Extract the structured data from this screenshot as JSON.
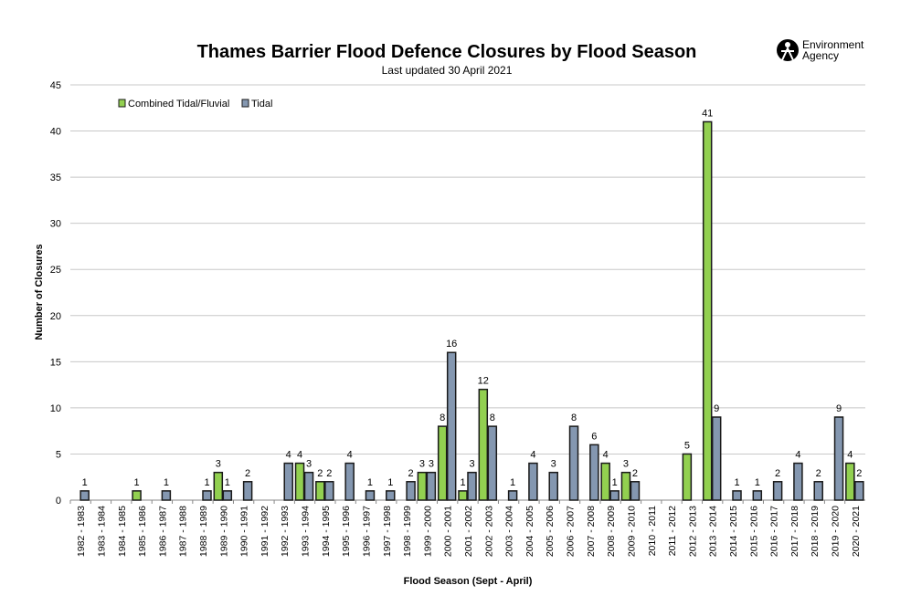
{
  "logo": {
    "line1": "Environment",
    "line2": "Agency"
  },
  "chart_data": {
    "type": "bar",
    "title": "Thames Barrier Flood Defence Closures by Flood Season",
    "subtitle": "Last updated  30 April 2021",
    "xlabel": "Flood Season (Sept - April)",
    "ylabel": "Number of Closures",
    "ylim": [
      0,
      45
    ],
    "yticks": [
      0,
      5,
      10,
      15,
      20,
      25,
      30,
      35,
      40,
      45
    ],
    "grid": true,
    "legend_position": "top-left",
    "categories": [
      "1982 - 1983",
      "1983 - 1984",
      "1984 - 1985",
      "1985 - 1986",
      "1986 - 1987",
      "1987 - 1988",
      "1988 - 1989",
      "1989 - 1990",
      "1990 - 1991",
      "1991 - 1992",
      "1992 - 1993",
      "1993 - 1994",
      "1994 - 1995",
      "1995 - 1996",
      "1996 - 1997",
      "1997 - 1998",
      "1998 - 1999",
      "1999 - 2000",
      "2000 - 2001",
      "2001 - 2002",
      "2002 - 2003",
      "2003 - 2004",
      "2004 - 2005",
      "2005 - 2006",
      "2006 - 2007",
      "2007 - 2008",
      "2008 - 2009",
      "2009 - 2010",
      "2010 - 2011",
      "2011 - 2012",
      "2012 - 2013",
      "2013 - 2014",
      "2014 - 2015",
      "2015 - 2016",
      "2016 - 2017",
      "2017 - 2018",
      "2018 - 2019",
      "2019 - 2020",
      "2020 - 2021"
    ],
    "series": [
      {
        "name": "Combined Tidal/Fluvial",
        "color": "#92d050",
        "values": [
          null,
          null,
          null,
          1,
          null,
          null,
          null,
          3,
          null,
          null,
          null,
          4,
          2,
          null,
          null,
          null,
          null,
          3,
          8,
          1,
          12,
          null,
          null,
          null,
          null,
          null,
          4,
          3,
          null,
          null,
          5,
          41,
          null,
          null,
          null,
          null,
          null,
          null,
          4
        ]
      },
      {
        "name": "Tidal",
        "color": "#8497b0",
        "values": [
          1,
          null,
          null,
          null,
          1,
          null,
          1,
          1,
          2,
          null,
          4,
          3,
          2,
          4,
          1,
          1,
          2,
          3,
          16,
          3,
          8,
          1,
          4,
          3,
          8,
          6,
          1,
          2,
          null,
          null,
          null,
          9,
          1,
          1,
          2,
          4,
          2,
          9,
          2
        ]
      }
    ]
  }
}
